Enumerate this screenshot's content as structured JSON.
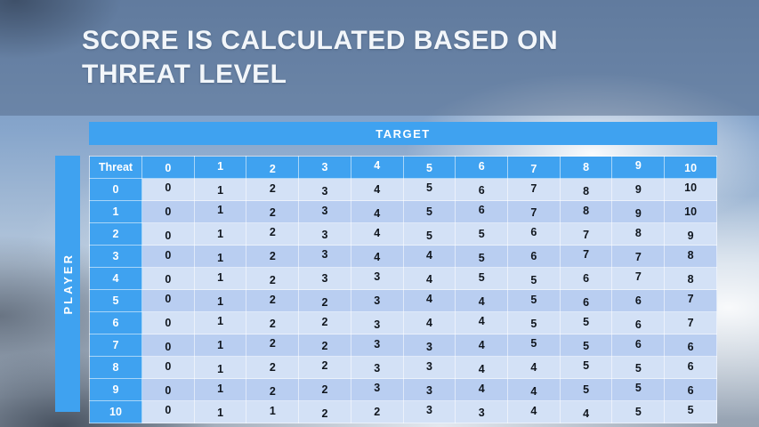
{
  "slide": {
    "title_line1": "SCORE IS CALCULATED BASED ON",
    "title_line2": "THREAT LEVEL"
  },
  "matrix": {
    "target_label": "TARGET",
    "player_label": "PLAYER",
    "corner_label": "Threat",
    "column_headers": [
      "0",
      "1",
      "2",
      "3",
      "4",
      "5",
      "6",
      "7",
      "8",
      "9",
      "10"
    ],
    "rows": [
      {
        "threat": "0",
        "values": [
          "0",
          "1",
          "2",
          "3",
          "4",
          "5",
          "6",
          "7",
          "8",
          "9",
          "10"
        ]
      },
      {
        "threat": "1",
        "values": [
          "0",
          "1",
          "2",
          "3",
          "4",
          "5",
          "6",
          "7",
          "8",
          "9",
          "10"
        ]
      },
      {
        "threat": "2",
        "values": [
          "0",
          "1",
          "2",
          "3",
          "4",
          "5",
          "5",
          "6",
          "7",
          "8",
          "9"
        ]
      },
      {
        "threat": "3",
        "values": [
          "0",
          "1",
          "2",
          "3",
          "4",
          "4",
          "5",
          "6",
          "7",
          "7",
          "8"
        ]
      },
      {
        "threat": "4",
        "values": [
          "0",
          "1",
          "2",
          "3",
          "3",
          "4",
          "5",
          "5",
          "6",
          "7",
          "8"
        ]
      },
      {
        "threat": "5",
        "values": [
          "0",
          "1",
          "2",
          "2",
          "3",
          "4",
          "4",
          "5",
          "6",
          "6",
          "7"
        ]
      },
      {
        "threat": "6",
        "values": [
          "0",
          "1",
          "2",
          "2",
          "3",
          "4",
          "4",
          "5",
          "5",
          "6",
          "7"
        ]
      },
      {
        "threat": "7",
        "values": [
          "0",
          "1",
          "2",
          "2",
          "3",
          "3",
          "4",
          "5",
          "5",
          "6",
          "6"
        ]
      },
      {
        "threat": "8",
        "values": [
          "0",
          "1",
          "2",
          "2",
          "3",
          "3",
          "4",
          "4",
          "5",
          "5",
          "6"
        ]
      },
      {
        "threat": "9",
        "values": [
          "0",
          "1",
          "2",
          "2",
          "3",
          "3",
          "4",
          "4",
          "5",
          "5",
          "6"
        ]
      },
      {
        "threat": "10",
        "values": [
          "0",
          "1",
          "1",
          "2",
          "2",
          "3",
          "3",
          "4",
          "4",
          "5",
          "5"
        ]
      }
    ]
  },
  "colors": {
    "accent_blue": "#3FA2F0",
    "row_light": "#D3E1F6",
    "row_dark": "#B9CEF1",
    "cell_text": "#10161E",
    "title_text": "#F2F6FA"
  }
}
